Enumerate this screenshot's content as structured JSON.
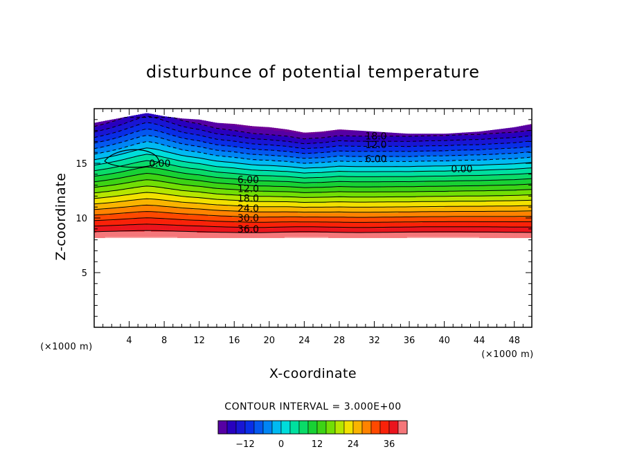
{
  "chart_data": {
    "type": "contour",
    "title": "disturbunce of potential temperature",
    "xlabel": "X-coordinate",
    "ylabel": "Z-coordinate",
    "x_unit": "(×1000 m)",
    "y_unit": "(×1000 m)",
    "xlim": [
      0,
      50
    ],
    "ylim": [
      0,
      20
    ],
    "x_ticks": [
      4,
      8,
      12,
      16,
      20,
      24,
      28,
      32,
      36,
      40,
      44,
      48
    ],
    "y_ticks": [
      5,
      10,
      15
    ],
    "contour_interval_text": "CONTOUR INTERVAL = 3.000E+00",
    "contour_interval": 3,
    "value_range": [
      -21,
      42
    ],
    "field_top_z": [
      [
        0,
        18.7
      ],
      [
        2,
        19.0
      ],
      [
        4,
        19.3
      ],
      [
        6,
        19.6
      ],
      [
        8,
        19.3
      ],
      [
        10,
        19.1
      ],
      [
        12,
        19.0
      ],
      [
        14,
        18.7
      ],
      [
        16,
        18.6
      ],
      [
        18,
        18.4
      ],
      [
        20,
        18.3
      ],
      [
        22,
        18.1
      ],
      [
        24,
        17.8
      ],
      [
        26,
        17.9
      ],
      [
        28,
        18.1
      ],
      [
        30,
        18.0
      ],
      [
        32,
        17.9
      ],
      [
        34,
        17.8
      ],
      [
        36,
        17.7
      ],
      [
        38,
        17.7
      ],
      [
        40,
        17.7
      ],
      [
        42,
        17.8
      ],
      [
        44,
        17.9
      ],
      [
        46,
        18.1
      ],
      [
        48,
        18.3
      ],
      [
        50,
        18.6
      ]
    ],
    "field_bottom_z": 8.2,
    "contour_labels": [
      {
        "text": "18.0",
        "x": 32.2,
        "z": 17.5
      },
      {
        "text": "12.0",
        "x": 32.2,
        "z": 16.7
      },
      {
        "text": "6.00",
        "x": 32.2,
        "z": 15.4
      },
      {
        "text": "0.00",
        "x": 7.5,
        "z": 15.0
      },
      {
        "text": "0.00",
        "x": 42.0,
        "z": 14.5
      },
      {
        "text": "6.00",
        "x": 17.6,
        "z": 13.5
      },
      {
        "text": "12.0",
        "x": 17.6,
        "z": 12.7
      },
      {
        "text": "18.0",
        "x": 17.6,
        "z": 11.8
      },
      {
        "text": "24.0",
        "x": 17.6,
        "z": 10.9
      },
      {
        "text": "30.0",
        "x": 17.6,
        "z": 10.0
      },
      {
        "text": "36.0",
        "x": 17.6,
        "z": 9.0
      }
    ],
    "colorbar": {
      "ticks": [
        -12,
        0,
        12,
        24,
        36
      ],
      "tick_labels": [
        "−12",
        "0",
        "12",
        "24",
        "36"
      ],
      "range": [
        -21,
        42
      ]
    }
  }
}
